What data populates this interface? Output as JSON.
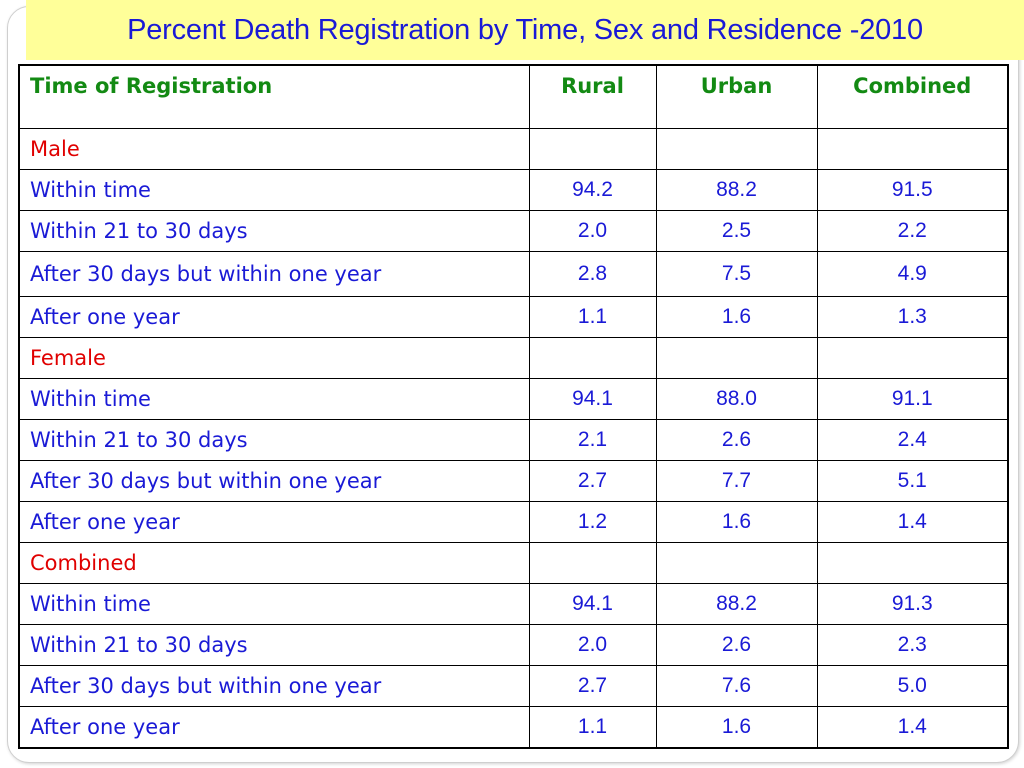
{
  "title": "Percent Death Registration by Time, Sex and Residence -2010",
  "headers": [
    "Time of Registration",
    "Rural",
    "Urban",
    "Combined"
  ],
  "sections": [
    {
      "name": "Male",
      "rows": [
        {
          "label": "Within time",
          "rural": "94.2",
          "urban": "88.2",
          "combined": "91.5"
        },
        {
          "label": "Within 21 to 30 days",
          "rural": "2.0",
          "urban": "2.5",
          "combined": "2.2"
        },
        {
          "label": "After 30 days but within one year",
          "rural": "2.8",
          "urban": "7.5",
          "combined": "4.9"
        },
        {
          "label": "After one year",
          "rural": "1.1",
          "urban": "1.6",
          "combined": "1.3"
        }
      ]
    },
    {
      "name": "Female",
      "rows": [
        {
          "label": "Within time",
          "rural": "94.1",
          "urban": "88.0",
          "combined": "91.1"
        },
        {
          "label": "Within 21 to 30 days",
          "rural": "2.1",
          "urban": "2.6",
          "combined": "2.4"
        },
        {
          "label": "After 30 days but within one year",
          "rural": "2.7",
          "urban": "7.7",
          "combined": "5.1"
        },
        {
          "label": "After one year",
          "rural": "1.2",
          "urban": "1.6",
          "combined": "1.4"
        }
      ]
    },
    {
      "name": "Combined",
      "rows": [
        {
          "label": "Within time",
          "rural": "94.1",
          "urban": "88.2",
          "combined": "91.3"
        },
        {
          "label": "Within 21 to 30 days",
          "rural": "2.0",
          "urban": "2.6",
          "combined": "2.3"
        },
        {
          "label": "After 30 days but within one year",
          "rural": "2.7",
          "urban": "7.6",
          "combined": "5.0"
        },
        {
          "label": "After one year",
          "rural": "1.1",
          "urban": "1.6",
          "combined": "1.4"
        }
      ]
    }
  ],
  "colors": {
    "title": "#1a1ad6",
    "title_background": "#ffff99",
    "header": "#138a13",
    "section": "#e00000",
    "body_text": "#1a1ad6"
  }
}
